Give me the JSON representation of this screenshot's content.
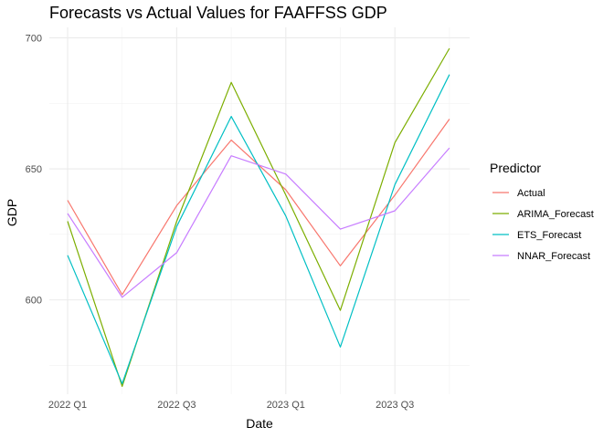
{
  "chart_data": {
    "type": "line",
    "title": "Forecasts vs Actual Values for FAAFFSS GDP",
    "xlabel": "Date",
    "ylabel": "GDP",
    "x": [
      "2022 Q1",
      "2022 Q2",
      "2022 Q3",
      "2022 Q4",
      "2023 Q1",
      "2023 Q2",
      "2023 Q3",
      "2023 Q4"
    ],
    "x_tick_labels": [
      "2022 Q1",
      "2022 Q3",
      "2023 Q1",
      "2023 Q3"
    ],
    "y_ticks": [
      600,
      650,
      700
    ],
    "ylim": [
      564,
      704
    ],
    "grid": true,
    "legend": {
      "title": "Predictor",
      "position": "right"
    },
    "series": [
      {
        "name": "Actual",
        "color": "#F8766D",
        "values": [
          638,
          602,
          636,
          661,
          642,
          613,
          640,
          669
        ]
      },
      {
        "name": "ARIMA_Forecast",
        "color": "#7CAE00",
        "values": [
          630,
          567,
          630,
          683,
          640,
          596,
          660,
          696
        ]
      },
      {
        "name": "ETS_Forecast",
        "color": "#00BFC4",
        "values": [
          617,
          568,
          628,
          670,
          632,
          582,
          644,
          686
        ]
      },
      {
        "name": "NNAR_Forecast",
        "color": "#C77CFF",
        "values": [
          633,
          601,
          618,
          655,
          648,
          627,
          634,
          658
        ]
      }
    ]
  }
}
